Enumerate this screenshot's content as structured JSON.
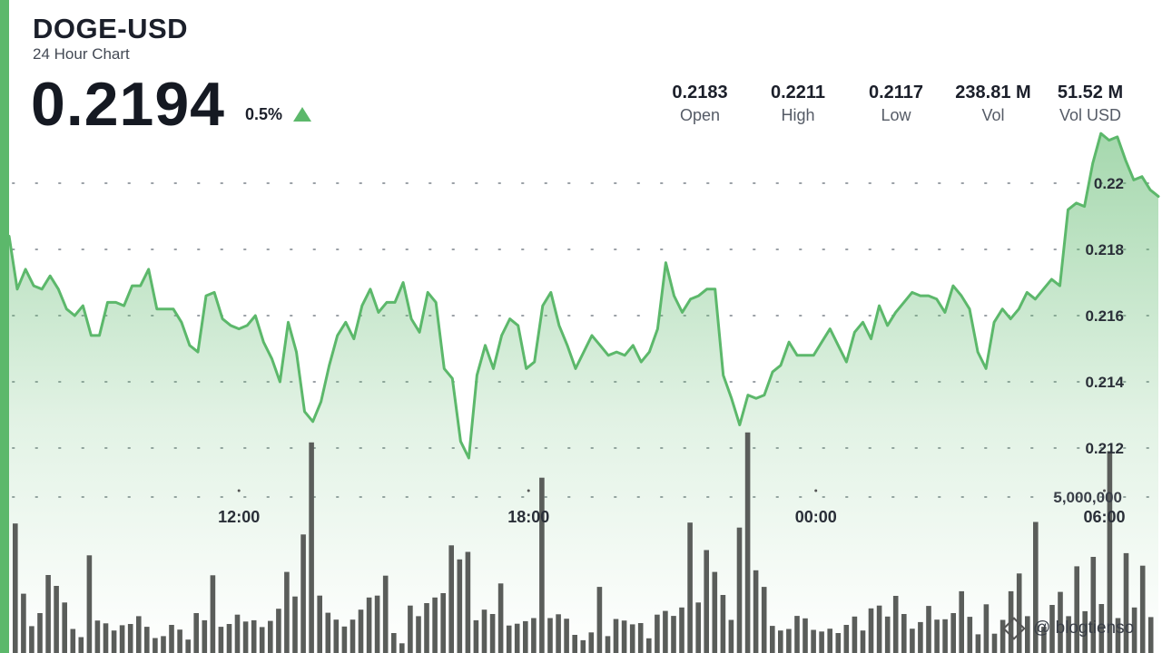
{
  "header": {
    "symbol": "DOGE-USD",
    "subtitle": "24 Hour Chart",
    "price": "0.2194",
    "change": "0.5%",
    "change_direction": "up",
    "accent_color": "#5cb86b"
  },
  "stats": [
    {
      "value": "0.2183",
      "label": "Open"
    },
    {
      "value": "0.2211",
      "label": "High"
    },
    {
      "value": "0.2117",
      "label": "Low"
    },
    {
      "value": "238.81 M",
      "label": "Vol"
    },
    {
      "value": "51.52 M",
      "label": "Vol USD"
    }
  ],
  "watermark": "@ blogtienso",
  "chart_data": {
    "type": "line",
    "title": "DOGE-USD",
    "subtitle": "24 Hour Chart",
    "xlabel": "",
    "ylabel": "",
    "ylim": [
      0.2085,
      0.2238
    ],
    "yticks": [
      0.22,
      0.218,
      0.216,
      0.214,
      0.212
    ],
    "ytick_labels": [
      "0.22",
      "0.218",
      "0.216",
      "0.214",
      "0.212"
    ],
    "xticks": [
      "12:00",
      "18:00",
      "00:00",
      "06:00"
    ],
    "xtick_fractions": [
      0.2,
      0.452,
      0.702,
      0.953
    ],
    "grid": "horizontal-dotted",
    "line_color": "#5cb86b",
    "fill": "gradient",
    "series": [
      {
        "values": [
          0.2184,
          0.2168,
          0.2174,
          0.2169,
          0.2168,
          0.2172,
          0.2168,
          0.2162,
          0.216,
          0.2163,
          0.2154,
          0.2154,
          0.2164,
          0.2164,
          0.2163,
          0.2169,
          0.2169,
          0.2174,
          0.2162,
          0.2162,
          0.2162,
          0.2158,
          0.2151,
          0.2149,
          0.2166,
          0.2167,
          0.2159,
          0.2157,
          0.2156,
          0.2157,
          0.216,
          0.2152,
          0.2147,
          0.214,
          0.2158,
          0.2149,
          0.2131,
          0.2128,
          0.2134,
          0.2145,
          0.2154,
          0.2158,
          0.2153,
          0.2163,
          0.2168,
          0.2161,
          0.2164,
          0.2164,
          0.217,
          0.2159,
          0.2155,
          0.2167,
          0.2164,
          0.2144,
          0.2141,
          0.2122,
          0.2117,
          0.2142,
          0.2151,
          0.2144,
          0.2154,
          0.2159,
          0.2157,
          0.2144,
          0.2146,
          0.2163,
          0.2167,
          0.2157,
          0.2151,
          0.2144,
          0.2149,
          0.2154,
          0.2151,
          0.2148,
          0.2149,
          0.2148,
          0.2151,
          0.2146,
          0.2149,
          0.2156,
          0.2176,
          0.2166,
          0.2161,
          0.2165,
          0.2166,
          0.2168,
          0.2168,
          0.2142,
          0.2135,
          0.2127,
          0.2136,
          0.2135,
          0.2136,
          0.2143,
          0.2145,
          0.2152,
          0.2148,
          0.2148,
          0.2148,
          0.2152,
          0.2156,
          0.2151,
          0.2146,
          0.2155,
          0.2158,
          0.2153,
          0.2163,
          0.2157,
          0.2161,
          0.2164,
          0.2167,
          0.2166,
          0.2166,
          0.2165,
          0.2161,
          0.2169,
          0.2166,
          0.2162,
          0.2149,
          0.2144,
          0.2158,
          0.2162,
          0.2159,
          0.2162,
          0.2167,
          0.2165,
          0.2168,
          0.2171,
          0.2169,
          0.2192,
          0.2194,
          0.2193,
          0.2206,
          0.2215,
          0.2213,
          0.2214,
          0.2207,
          0.2201,
          0.2202,
          0.2198,
          0.2196
        ]
      }
    ],
    "volume": {
      "label": "5,000,000",
      "level": 5000000,
      "bar_color": "#5a5d5a",
      "values": [
        4150000,
        1900000,
        860000,
        1280000,
        2500000,
        2150000,
        1620000,
        770000,
        510000,
        3130000,
        1040000,
        950000,
        720000,
        890000,
        930000,
        1180000,
        840000,
        480000,
        540000,
        900000,
        750000,
        430000,
        1280000,
        1050000,
        2490000,
        840000,
        930000,
        1230000,
        1010000,
        1050000,
        830000,
        1030000,
        1420000,
        2600000,
        1810000,
        3800000,
        6750000,
        1840000,
        1290000,
        1070000,
        850000,
        1070000,
        1390000,
        1780000,
        1840000,
        2480000,
        640000,
        310000,
        1520000,
        1180000,
        1600000,
        1780000,
        1920000,
        3450000,
        3000000,
        3240000,
        1050000,
        1390000,
        1250000,
        2230000,
        880000,
        940000,
        1020000,
        1120000,
        5620000,
        1120000,
        1240000,
        1100000,
        580000,
        410000,
        660000,
        2120000,
        540000,
        1090000,
        1040000,
        920000,
        960000,
        470000,
        1230000,
        1350000,
        1190000,
        1460000,
        4180000,
        1620000,
        3300000,
        2600000,
        1860000,
        1060000,
        4020000,
        7070000,
        2650000,
        2120000,
        870000,
        720000,
        770000,
        1190000,
        1110000,
        740000,
        690000,
        780000,
        640000,
        900000,
        1170000,
        720000,
        1430000,
        1520000,
        1170000,
        1830000,
        1250000,
        780000,
        990000,
        1510000,
        1070000,
        1080000,
        1280000,
        1980000,
        1160000,
        600000,
        1560000,
        620000,
        1060000,
        1980000,
        2550000,
        1180000,
        4200000,
        840000,
        1540000,
        1960000,
        1180000,
        2780000,
        1340000,
        3080000,
        1570000,
        6470000,
        1120000,
        3200000,
        1460000,
        2800000,
        1150000
      ]
    }
  }
}
